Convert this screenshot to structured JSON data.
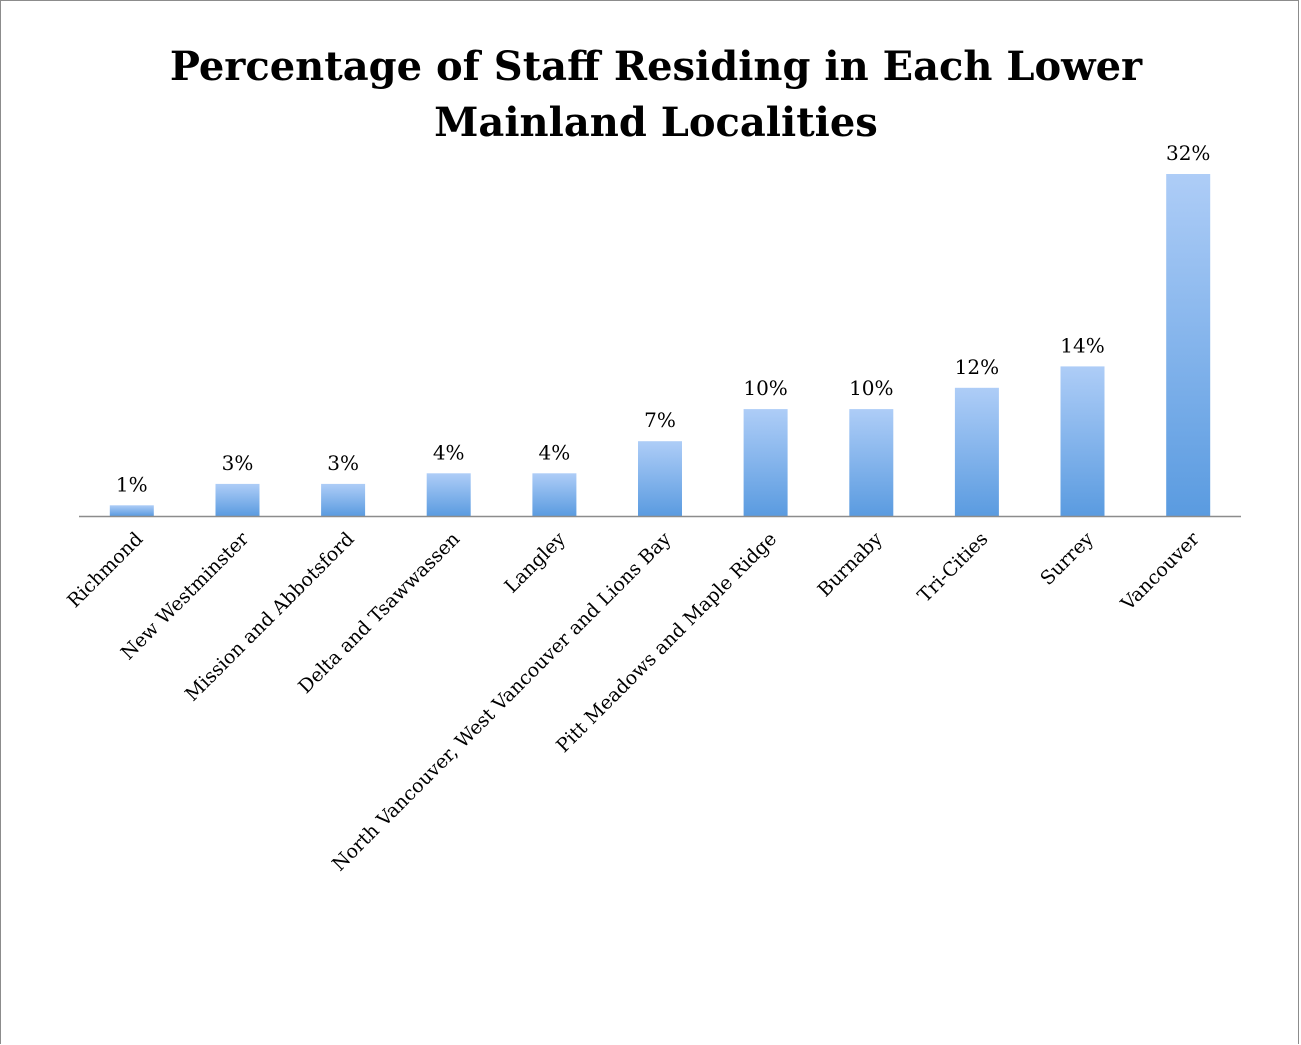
{
  "chart_data": {
    "type": "bar",
    "title": "Percentage of Staff Residing in Each Lower Mainland Localities",
    "categories": [
      "Richmond",
      "New Westminster",
      "Mission and Abbotsford",
      "Delta and Tsawwassen",
      "Langley",
      "North Vancouver, West Vancouver and Lions Bay",
      "Pitt Meadows and Maple Ridge",
      "Burnaby",
      "Tri-Cities",
      "Surrey",
      "Vancouver"
    ],
    "values": [
      1,
      3,
      3,
      4,
      4,
      7,
      10,
      10,
      12,
      14,
      32
    ],
    "value_labels": [
      "1%",
      "3%",
      "3%",
      "4%",
      "4%",
      "7%",
      "10%",
      "10%",
      "12%",
      "14%",
      "32%"
    ],
    "unit": "%",
    "ylim": [
      0,
      32
    ],
    "grid": false,
    "legend": "none",
    "colors": {
      "bar_top": "#aecdf7",
      "bar_bottom": "#5a9be0",
      "axis": "#8c8c8c"
    }
  }
}
